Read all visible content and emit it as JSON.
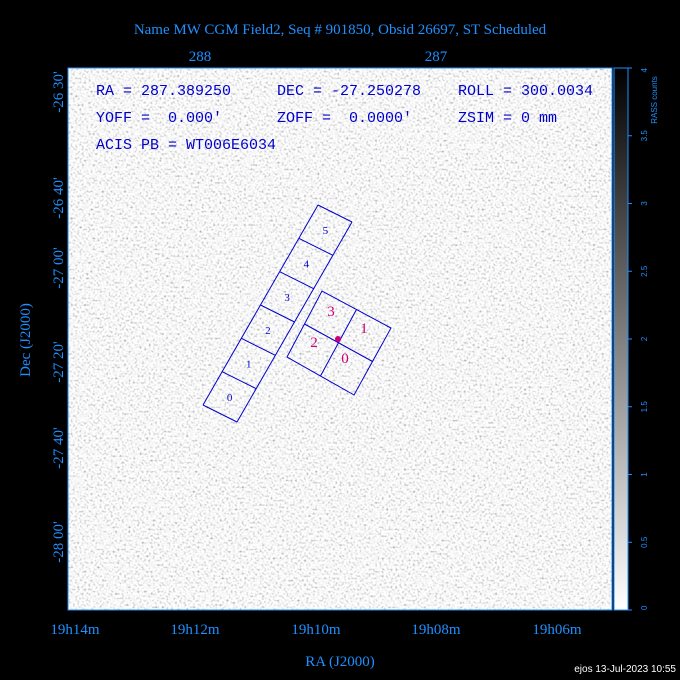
{
  "title": "Name MW CGM Field2, Seq # 901850, Obsid 26697, ST Scheduled",
  "top_axis": {
    "labels": [
      "288",
      "287"
    ]
  },
  "left_axis": {
    "title": "Dec (J2000)",
    "labels": [
      "-26 30'",
      "-26 40'",
      "-27 00'",
      "-27 20'",
      "-27 40'",
      "-28 00'"
    ]
  },
  "bottom_axis": {
    "title": "RA (J2000)",
    "labels": [
      "19h14m",
      "19h12m",
      "19h10m",
      "19h08m",
      "19h06m"
    ]
  },
  "info": [
    "RA = 287.389250",
    "DEC = -27.250278",
    "ROLL = 300.0034",
    "YOFF =  0.000'",
    "ZOFF =  0.0000'",
    "ZSIM = 0 mm",
    "ACIS PB = WT006E6034"
  ],
  "acis_s": {
    "chips": [
      "0",
      "1",
      "2",
      "3",
      "4",
      "5"
    ]
  },
  "acis_i": {
    "chips": [
      "0",
      "1",
      "2",
      "3"
    ]
  },
  "colorbar": {
    "title": "RASS counts",
    "labels": [
      "0",
      "0.5",
      "1",
      "1.5",
      "2",
      "2.5",
      "3",
      "3.5",
      "4"
    ]
  },
  "footer": "ejos 13-Jul-2023 10:55"
}
